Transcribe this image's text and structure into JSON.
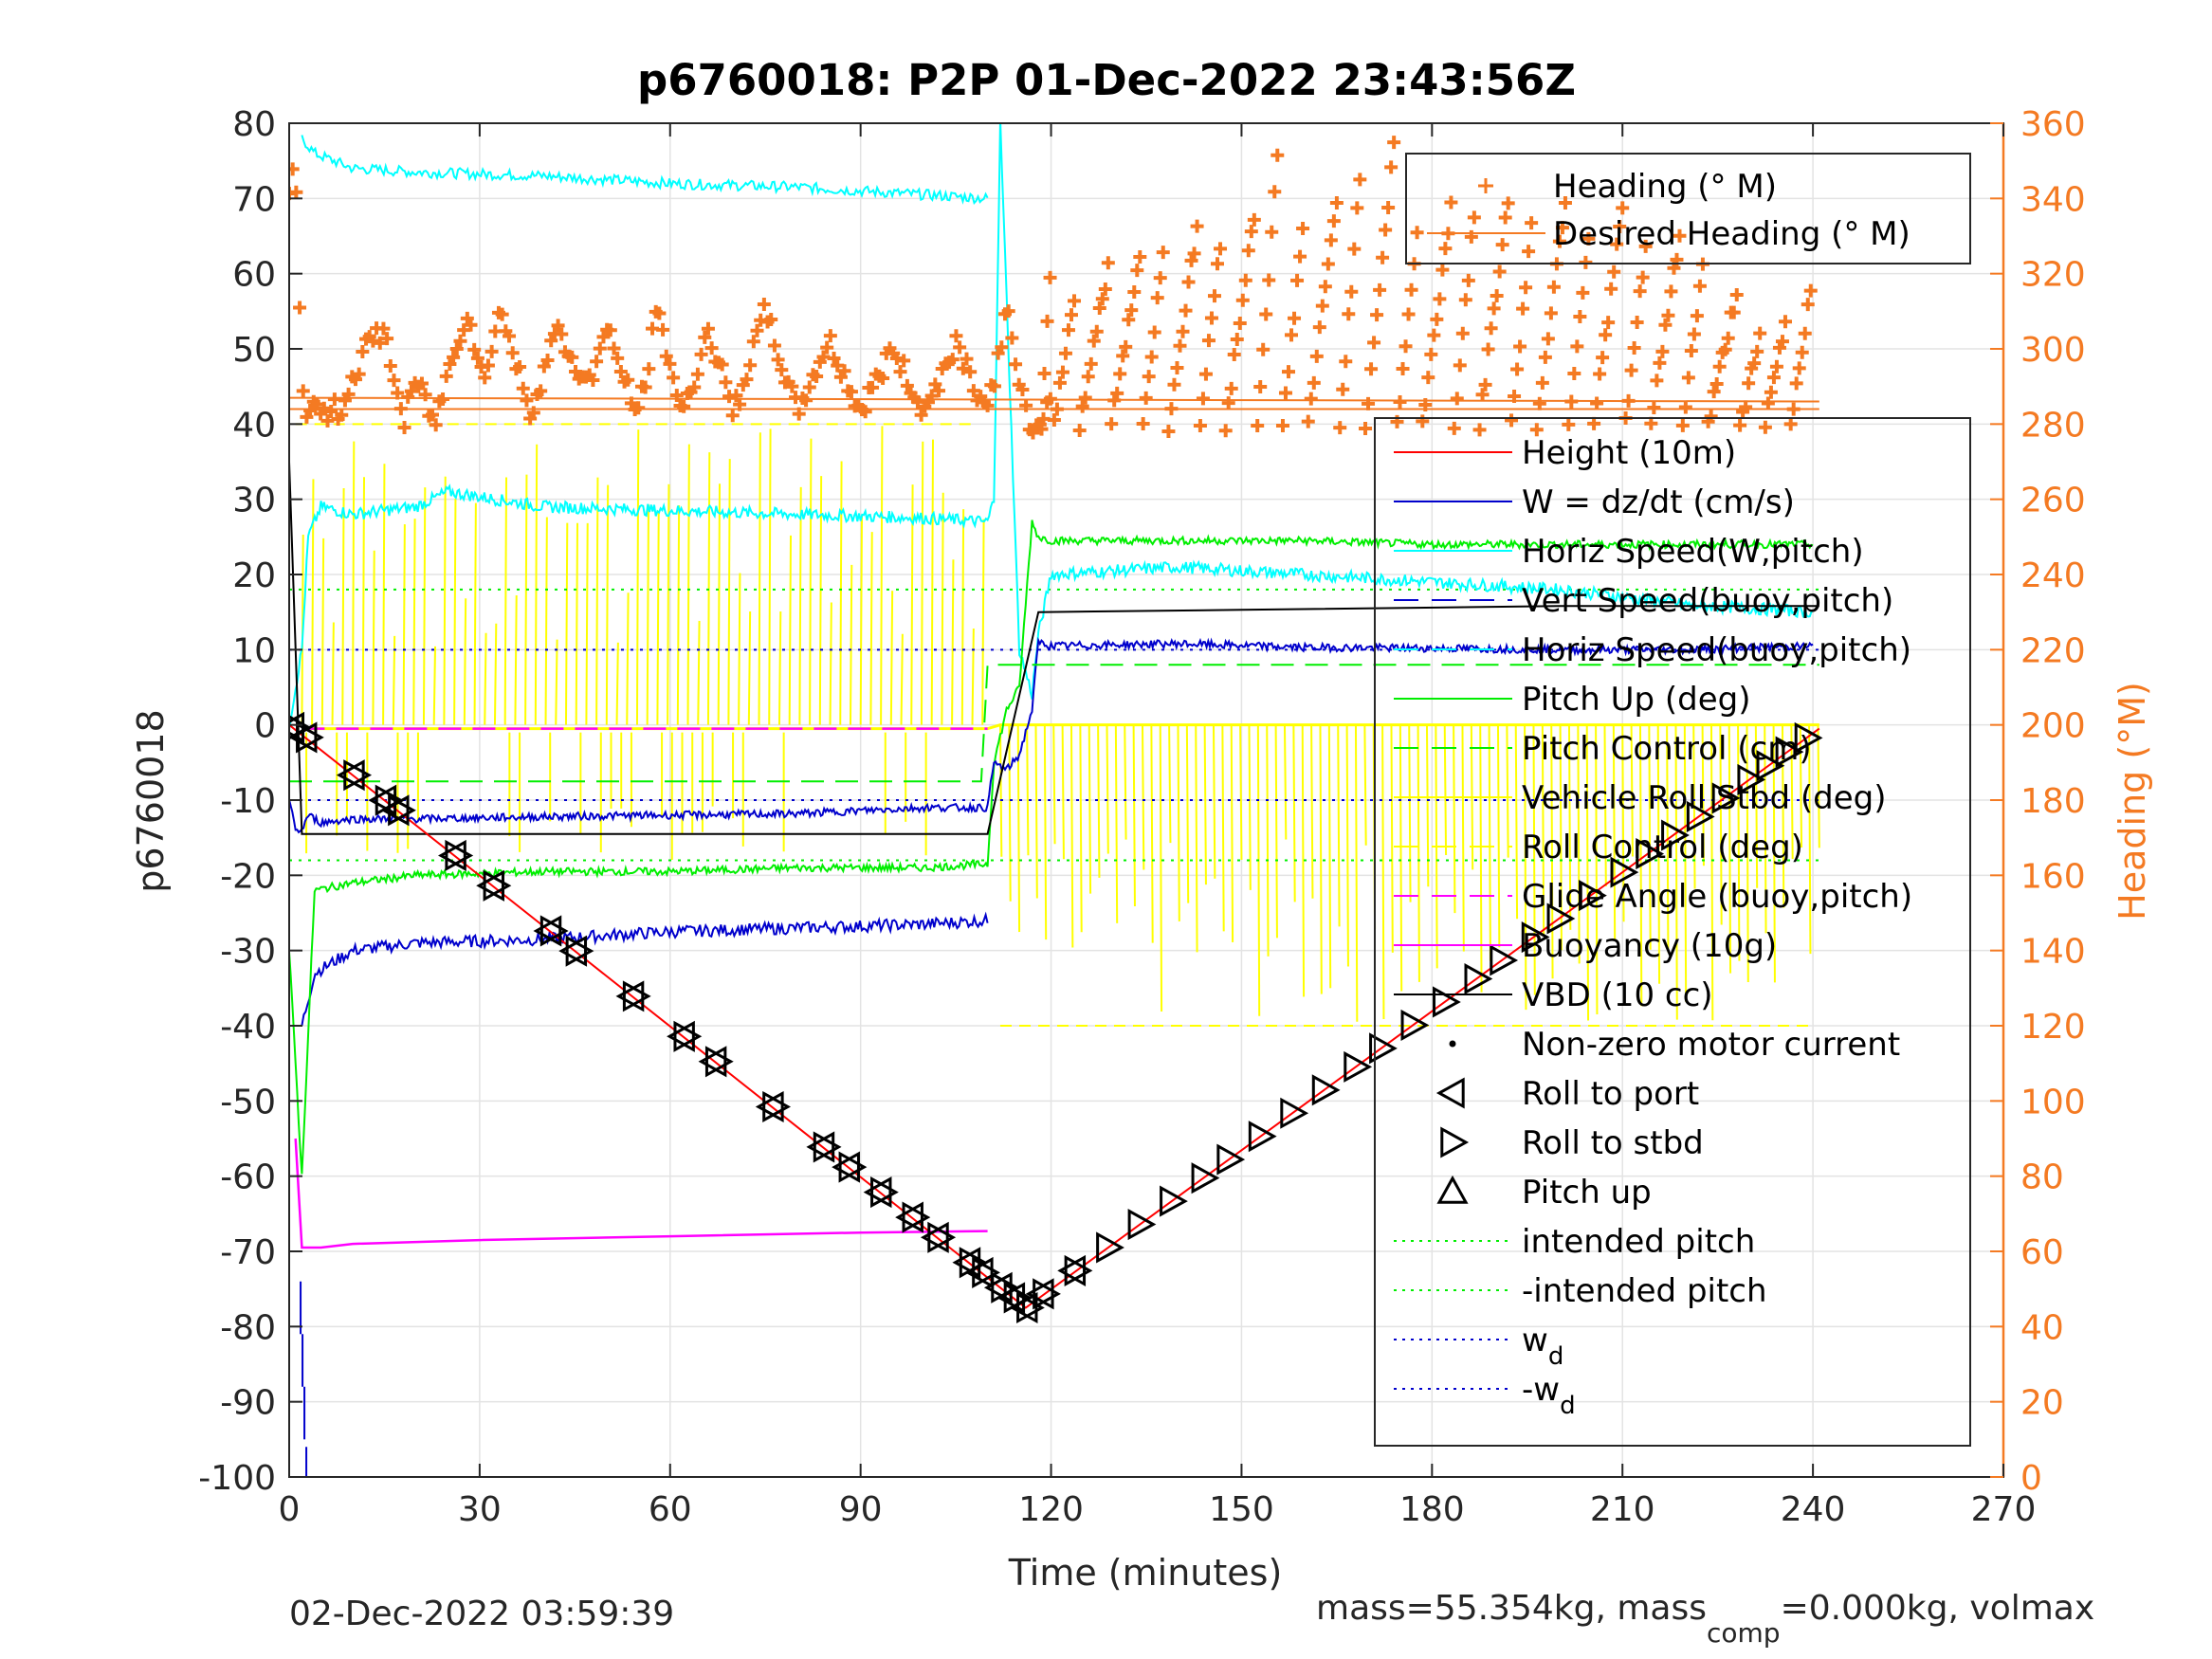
{
  "chart_data": {
    "type": "line",
    "title": "p6760018: P2P 01-Dec-2022 23:43:56Z",
    "xlabel": "Time (minutes)",
    "ylabel_left": "p6760018",
    "ylabel_right": "Heading (°M)",
    "xlim": [
      0,
      270
    ],
    "ylim_left": [
      -100,
      80
    ],
    "ylim_right": [
      0,
      360
    ],
    "xticks": [
      0,
      30,
      60,
      90,
      120,
      150,
      180,
      210,
      240,
      270
    ],
    "yticks_left": [
      -100,
      -90,
      -80,
      -70,
      -60,
      -50,
      -40,
      -30,
      -20,
      -10,
      0,
      10,
      20,
      30,
      40,
      50,
      60,
      70,
      80
    ],
    "yticks_right": [
      0,
      20,
      40,
      60,
      80,
      100,
      120,
      140,
      160,
      180,
      200,
      220,
      240,
      260,
      280,
      300,
      320,
      340,
      360
    ],
    "grid": true,
    "colors": {
      "height": "#ff0000",
      "w": "#0000cc",
      "horiz": "#00ffff",
      "pitch": "#00ee00",
      "roll": "#ffff00",
      "buoy": "#ff00ff",
      "vbd": "#000000",
      "heading": "#f47a22",
      "axis": "#262626"
    },
    "legend_heading": {
      "placement": "top-right",
      "entries": [
        {
          "label": "Heading (° M)",
          "color": "#f47a22",
          "style": "plus"
        },
        {
          "label": "Desired Heading (° M)",
          "color": "#f47a22",
          "style": "solid"
        }
      ]
    },
    "legend_main": {
      "placement": "right",
      "entries": [
        {
          "label": "Height (10m)",
          "color": "#ff0000",
          "style": "solid"
        },
        {
          "label": "W = dz/dt (cm/s)",
          "color": "#0000cc",
          "style": "solid"
        },
        {
          "label": "Horiz Speed(W,pitch)",
          "color": "#00ffff",
          "style": "solid"
        },
        {
          "label": "Vert Speed(buoy,pitch)",
          "color": "#0000cc",
          "style": "dash"
        },
        {
          "label": "Horiz Speed(buoy,pitch)",
          "color": "#00ffff",
          "style": "dash"
        },
        {
          "label": "Pitch Up (deg)",
          "color": "#00ee00",
          "style": "solid"
        },
        {
          "label": "Pitch Control (cm)",
          "color": "#00ee00",
          "style": "dash"
        },
        {
          "label": "Vehicle Roll Stbd (deg)",
          "color": "#ffff00",
          "style": "solid"
        },
        {
          "label": "Roll Control (deg)",
          "color": "#ffff00",
          "style": "dash"
        },
        {
          "label": "Glide Angle (buoy,pitch)",
          "color": "#ff00ff",
          "style": "dash"
        },
        {
          "label": "Buoyancy (10g)",
          "color": "#ff00ff",
          "style": "solid"
        },
        {
          "label": "VBD (10 cc)",
          "color": "#000000",
          "style": "solid"
        },
        {
          "label": "Non-zero motor current",
          "color": "#000000",
          "style": "dot"
        },
        {
          "label": "Roll to port",
          "color": "#000000",
          "style": "tri-left"
        },
        {
          "label": "Roll to stbd",
          "color": "#000000",
          "style": "tri-right"
        },
        {
          "label": "Pitch up",
          "color": "#000000",
          "style": "tri-up"
        },
        {
          "label": "intended pitch",
          "color": "#00ee00",
          "style": "dotted"
        },
        {
          "label": "-intended pitch",
          "color": "#00ee00",
          "style": "dotted"
        },
        {
          "label": "w",
          "sub": "d",
          "color": "#0000cc",
          "style": "dotted"
        },
        {
          "label": "-w",
          "sub": "d",
          "color": "#0000cc",
          "style": "dotted"
        }
      ]
    },
    "series": [
      {
        "name": "Height (10m)",
        "color": "#ff0000",
        "x": [
          0,
          116,
          241
        ],
        "y": [
          0,
          -77.5,
          -0.5
        ]
      },
      {
        "name": "W = dz/dt (cm/s)",
        "color": "#0000cc",
        "x": [
          0,
          1,
          2,
          3,
          5,
          10,
          20,
          40,
          60,
          80,
          100,
          110,
          111,
          113,
          115,
          117,
          118,
          120,
          140,
          160,
          180,
          200,
          220,
          240
        ],
        "y": [
          -10,
          -14,
          -14,
          -12,
          -13,
          -12.5,
          -12.5,
          -12.2,
          -12,
          -11.8,
          -11,
          -11,
          -5,
          -6,
          -4,
          2,
          11,
          10.5,
          10.8,
          10.3,
          10.2,
          10,
          10,
          10.5
        ]
      },
      {
        "name": "Vert Speed(buoy,pitch)",
        "color": "#0000cc",
        "x": [
          2,
          4,
          10,
          20,
          40,
          60,
          80,
          100,
          110
        ],
        "y": [
          -40,
          -33,
          -30,
          -29,
          -28.5,
          -27.5,
          -27,
          -26.5,
          -26
        ]
      },
      {
        "name": "Horiz Speed(W,pitch)",
        "color": "#00ffff",
        "x": [
          0,
          2,
          3,
          5,
          10,
          20,
          25,
          40,
          60,
          80,
          100,
          110,
          111,
          112,
          115,
          117,
          118,
          120,
          140,
          160,
          180,
          200,
          220,
          240
        ],
        "y": [
          0,
          10,
          25,
          29,
          28,
          29,
          31,
          29,
          28.5,
          28,
          27.5,
          27,
          30,
          80,
          10,
          4,
          12,
          20,
          21,
          20,
          19,
          18,
          16,
          15
        ]
      },
      {
        "name": "Horiz Speed(buoy,pitch)",
        "color": "#00ffff",
        "x": [
          2,
          4,
          10,
          20,
          40,
          60,
          80,
          100,
          110
        ],
        "y": [
          78,
          76,
          74,
          73.5,
          73,
          72,
          71.5,
          70.5,
          70
        ]
      },
      {
        "name": "Pitch Up (deg)",
        "color": "#00ee00",
        "x": [
          0,
          2,
          4,
          10,
          20,
          40,
          60,
          80,
          100,
          110,
          111,
          113,
          115,
          117,
          118,
          120,
          140,
          160,
          180,
          200,
          220,
          240
        ],
        "y": [
          -30,
          -60,
          -22,
          -21,
          -20,
          -19.5,
          -19.5,
          -19,
          -19,
          -18.5,
          -5,
          2,
          5,
          27,
          25,
          24.5,
          24.5,
          24.5,
          24,
          24,
          24,
          24
        ]
      },
      {
        "name": "Pitch Control (cm)",
        "color": "#00ee00",
        "x": [
          0,
          109,
          110,
          241
        ],
        "y": [
          -7.5,
          -7.5,
          8,
          8
        ]
      },
      {
        "name": "Glide Angle (buoy,pitch)",
        "color": "#ff00ff",
        "x": [
          2,
          110
        ],
        "y": [
          -0.5,
          -0.5
        ]
      },
      {
        "name": "Buoyancy (10g)",
        "color": "#ff00ff",
        "x": [
          1,
          2,
          5,
          10,
          30,
          60,
          90,
          110
        ],
        "y": [
          -55,
          -69.5,
          -69.5,
          -69,
          -68.5,
          -68,
          -67.5,
          -67.3
        ]
      },
      {
        "name": "VBD (10 cc)",
        "color": "#000000",
        "x": [
          0,
          2,
          10,
          60,
          110,
          118,
          150,
          200,
          241
        ],
        "y": [
          35,
          -14.5,
          -14.5,
          -14.5,
          -14.5,
          15,
          15.3,
          15.8,
          15.8
        ]
      },
      {
        "name": "Desired Heading (° M)",
        "color": "#f47a22",
        "axis": "right",
        "x": [
          0,
          241
        ],
        "y": [
          284,
          284
        ]
      }
    ],
    "reference_lines": [
      {
        "name": "intended pitch",
        "y": 18,
        "color": "#00ee00"
      },
      {
        "name": "-intended pitch",
        "y": -18,
        "color": "#00ee00"
      },
      {
        "name": "wd",
        "y": 10,
        "color": "#0000cc"
      },
      {
        "name": "-wd",
        "y": -10,
        "color": "#0000cc"
      }
    ],
    "heading_profile": {
      "x": [
        0,
        1,
        2,
        3,
        5,
        8,
        12,
        15,
        18,
        20,
        23,
        26,
        28,
        31,
        33,
        38,
        42,
        47,
        50,
        55,
        58,
        62,
        66,
        70,
        75,
        80,
        85,
        90,
        95,
        100,
        105,
        110,
        113,
        117,
        120
      ],
      "y": [
        340,
        350,
        290,
        283,
        283,
        284,
        300,
        305,
        280,
        292,
        280,
        300,
        310,
        290,
        312,
        283,
        305,
        290,
        305,
        282,
        310,
        282,
        305,
        283,
        310,
        283,
        302,
        283,
        300,
        283,
        302,
        283,
        310,
        275,
        285
      ]
    },
    "heading_climb_teeth": [
      {
        "x": 120,
        "y": 325
      },
      {
        "x": 124,
        "y": 318
      },
      {
        "x": 129,
        "y": 322
      },
      {
        "x": 134,
        "y": 325
      },
      {
        "x": 138,
        "y": 330
      },
      {
        "x": 143,
        "y": 332
      },
      {
        "x": 147,
        "y": 334
      },
      {
        "x": 152,
        "y": 336
      },
      {
        "x": 156,
        "y": 358
      },
      {
        "x": 160,
        "y": 338
      },
      {
        "x": 165,
        "y": 340
      },
      {
        "x": 169,
        "y": 352
      },
      {
        "x": 174,
        "y": 354
      },
      {
        "x": 178,
        "y": 336
      },
      {
        "x": 183,
        "y": 338
      },
      {
        "x": 187,
        "y": 342
      },
      {
        "x": 192,
        "y": 340
      },
      {
        "x": 196,
        "y": 338
      },
      {
        "x": 201,
        "y": 340
      },
      {
        "x": 205,
        "y": 336
      },
      {
        "x": 210,
        "y": 338
      },
      {
        "x": 214,
        "y": 332
      },
      {
        "x": 219,
        "y": 330
      },
      {
        "x": 223,
        "y": 327
      },
      {
        "x": 228,
        "y": 315
      },
      {
        "x": 232,
        "y": 305
      },
      {
        "x": 236,
        "y": 310
      },
      {
        "x": 240,
        "y": 320
      }
    ],
    "marker_points": {
      "dive": [
        0.5,
        2.5,
        10,
        15,
        17,
        26,
        32,
        41,
        45,
        54,
        62,
        67,
        76,
        84,
        88,
        93,
        98,
        102,
        107,
        109,
        112,
        114,
        116
      ],
      "climb": [
        119,
        124,
        129,
        134,
        139,
        144,
        148,
        153,
        158,
        163,
        168,
        172,
        177,
        182,
        187,
        191,
        196,
        200,
        205,
        210,
        214,
        218,
        222,
        226,
        230,
        233,
        236,
        239
      ]
    },
    "footer_left": "02-Dec-2022 03:59:39",
    "footer_right_prefix": "mass=55.354kg, mass",
    "footer_right_sub": "comp",
    "footer_right_suffix": "=0.000kg, volmax"
  }
}
